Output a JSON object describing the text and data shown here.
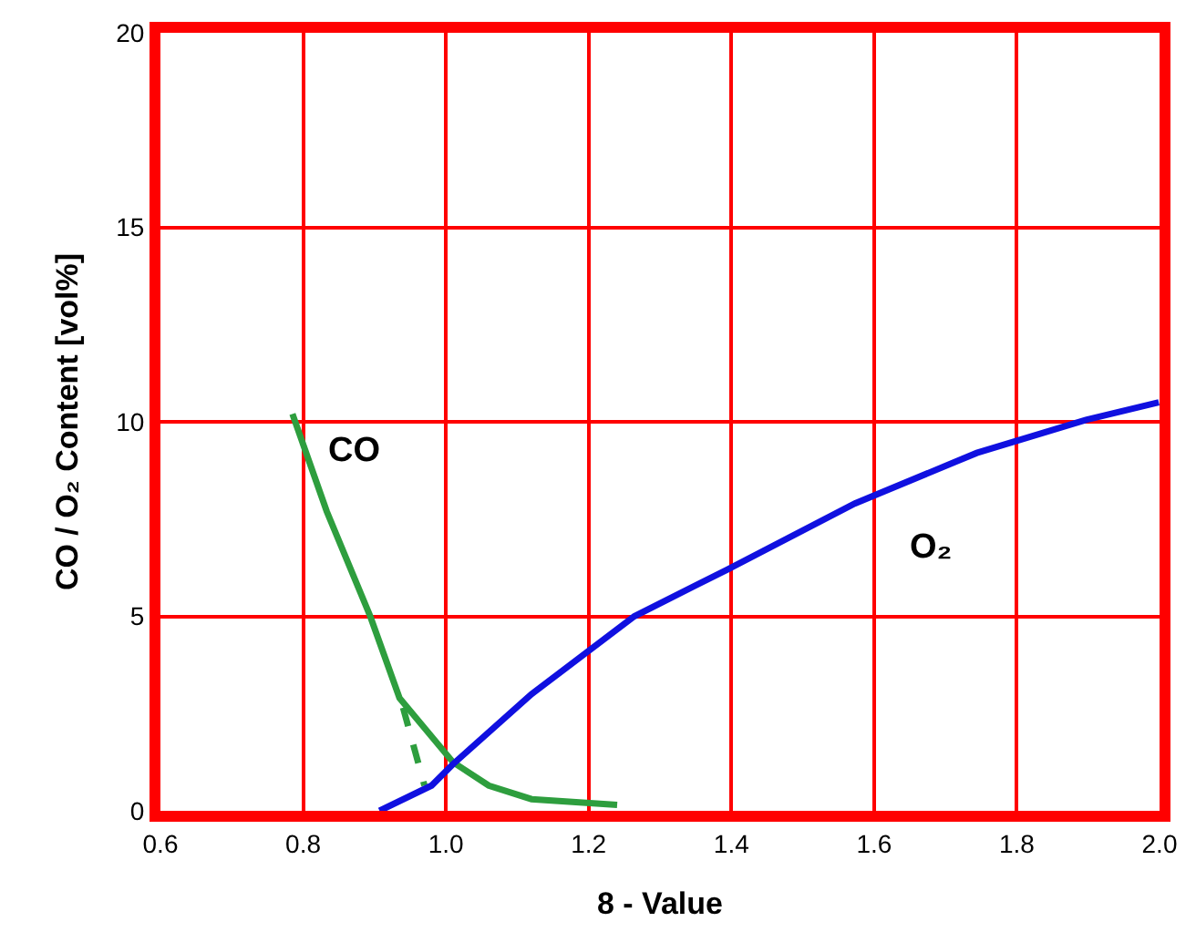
{
  "chart_data": {
    "type": "line",
    "xlabel": "8 - Value",
    "ylabel": "CO / O₂ Content [vol%]",
    "xlim": [
      0.6,
      2.0
    ],
    "xticks": [
      {
        "value": 0.6,
        "label": "0.6"
      },
      {
        "value": 0.8,
        "label": "0.8"
      },
      {
        "value": 1.0,
        "label": "1.0"
      },
      {
        "value": 1.2,
        "label": "1.2"
      },
      {
        "value": 1.4,
        "label": "1.4"
      },
      {
        "value": 1.6,
        "label": "1.6"
      },
      {
        "value": 1.8,
        "label": "1.8"
      },
      {
        "value": 2.0,
        "label": "2.0"
      }
    ],
    "ylim": [
      0,
      20
    ],
    "yticks": [
      0,
      5,
      10,
      15,
      20
    ],
    "grid": true,
    "legend": false,
    "marker": "none",
    "series": [
      {
        "name": "CO",
        "color": "#2e9e3e",
        "line_style": "solid",
        "x": [
          0.785,
          0.833,
          0.894,
          0.935,
          1.01,
          1.06,
          1.12,
          1.24
        ],
        "values": [
          10.2,
          7.7,
          5.0,
          2.9,
          1.25,
          0.65,
          0.3,
          0.15
        ]
      },
      {
        "color": "#2e9e3e",
        "line_style": "dashed",
        "x": [
          0.94,
          0.97
        ],
        "values": [
          2.65,
          0.65
        ]
      },
      {
        "name": "O₂",
        "color": "#1010e0",
        "line_style": "solid",
        "x": [
          0.907,
          0.98,
          1.01,
          1.12,
          1.264,
          1.394,
          1.573,
          1.744,
          1.897,
          1.999
        ],
        "values": [
          0,
          0.65,
          1.2,
          3.0,
          5.0,
          6.2,
          7.9,
          9.2,
          10.05,
          10.5
        ]
      }
    ]
  }
}
